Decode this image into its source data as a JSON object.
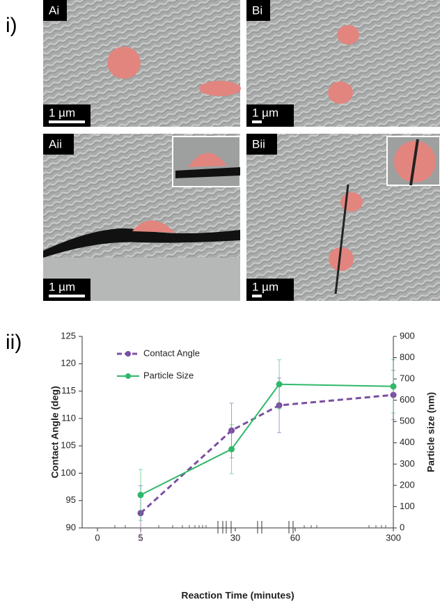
{
  "figure": {
    "part_labels": [
      "i)",
      "ii)"
    ],
    "panels": [
      {
        "label": "Ai",
        "scale": "1 µm"
      },
      {
        "label": "Bi",
        "scale": "1 µm"
      },
      {
        "label": "Aii",
        "scale": "1 µm"
      },
      {
        "label": "Bii",
        "scale": "1 µm"
      }
    ]
  },
  "chart_data": {
    "type": "line",
    "x_label": "Reaction Time (minutes)",
    "y_label": "Contact Angle (deg)",
    "y2_label": "Particle size (nm)",
    "x": [
      5,
      29,
      52,
      300
    ],
    "xlim": [
      -2,
      300
    ],
    "xticks": [
      0,
      5,
      30,
      60,
      300
    ],
    "ylim": [
      90,
      125
    ],
    "yticks": [
      90,
      95,
      100,
      105,
      110,
      115,
      120,
      125
    ],
    "y2lim": [
      0,
      900
    ],
    "y2ticks": [
      0,
      100,
      200,
      300,
      400,
      500,
      600,
      700,
      800,
      900
    ],
    "legend": "upper left",
    "series": [
      {
        "name": "Contact Angle",
        "color": "#7b4ea3",
        "dash": true,
        "errors": [
          5,
          5,
          5,
          4.5
        ],
        "values": [
          92.7,
          107.8,
          112.4,
          114.3
        ]
      },
      {
        "name": "Particle Size",
        "color": "#2fb86a",
        "dash": false,
        "axis": "y2",
        "errors": [
          120,
          115,
          115,
          125
        ],
        "values": [
          155,
          370,
          675,
          665
        ]
      }
    ]
  }
}
